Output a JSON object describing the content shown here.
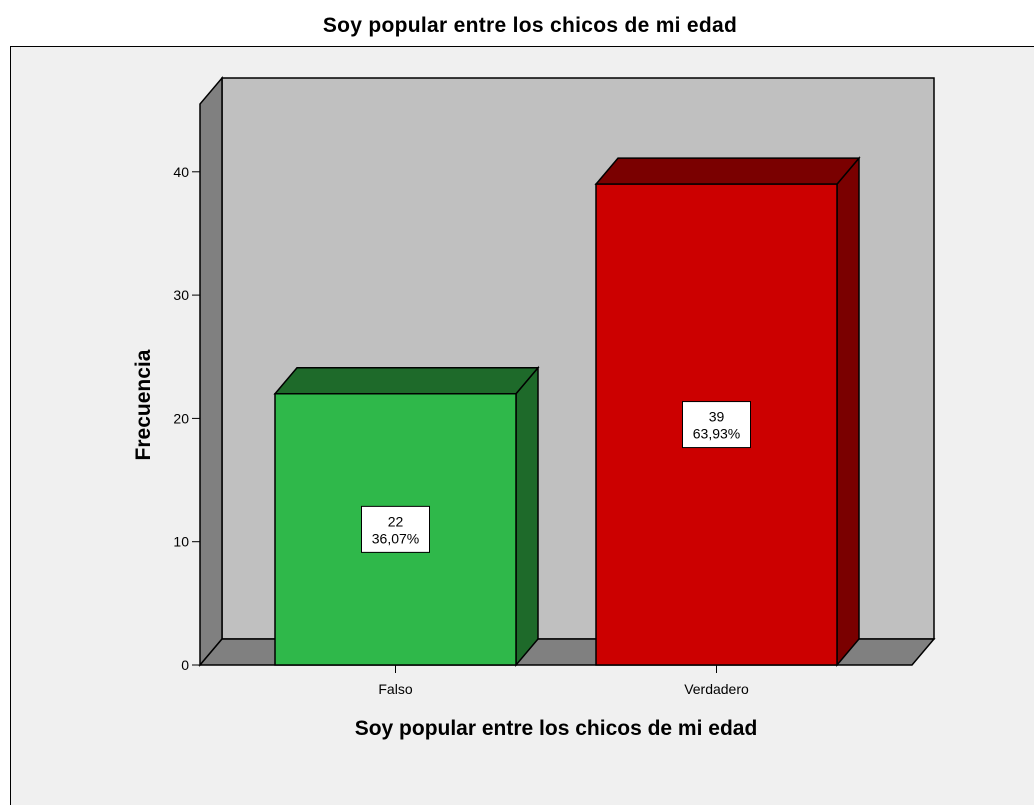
{
  "chart_data": {
    "type": "bar",
    "title": "Soy popular entre los chicos de mi edad",
    "xlabel": "Soy popular entre los chicos de mi edad",
    "ylabel": "Frecuencia",
    "categories": [
      "Falso",
      "Verdadero"
    ],
    "values": [
      22,
      39
    ],
    "percent_labels": [
      "36,07%",
      "63,93%"
    ],
    "ylim": [
      0,
      40
    ],
    "yticks": [
      0,
      10,
      20,
      30,
      40
    ],
    "grid": false,
    "style": "3d",
    "colors": {
      "bar_fronts": [
        "#2fb84a",
        "#cc0000"
      ],
      "bar_tops": [
        "#1e6a2a",
        "#7a0000"
      ],
      "bar_sides": [
        "#1e6a2a",
        "#7a0000"
      ],
      "plot_back_wall": "#c0c0c0",
      "plot_side_wall": "#808080",
      "plot_floor": "#808080",
      "chart_background": "#f0f0f0"
    }
  }
}
